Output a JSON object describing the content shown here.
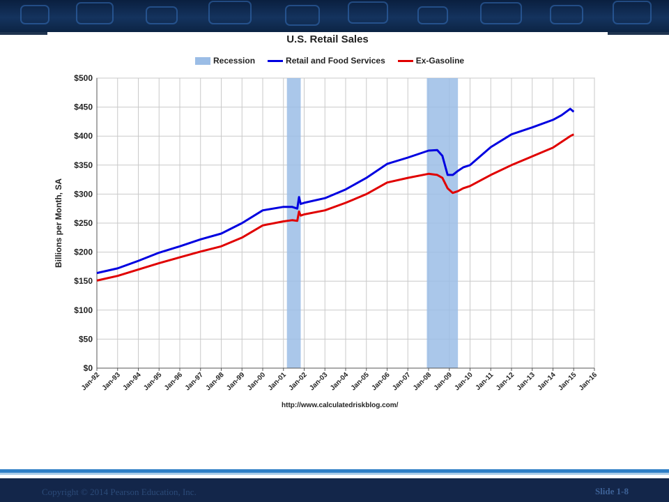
{
  "slide": {
    "copyright": "Copyright © 2014 Pearson Education, Inc.",
    "slide_number": "Slide 1-8",
    "colors": {
      "banner": "#0a1f3f",
      "footer": "#13264a",
      "accent_blue": "#2f7fc6"
    }
  },
  "chart_data": {
    "type": "line",
    "title": "U.S. Retail Sales",
    "ylabel": "Billions per Month, SA",
    "xlabel": "",
    "source": "http://www.calculatedriskblog.com/",
    "ylim": [
      0,
      500
    ],
    "y_ticks": [
      "$0",
      "$50",
      "$100",
      "$150",
      "$200",
      "$250",
      "$300",
      "$350",
      "$400",
      "$450",
      "$500"
    ],
    "x_ticks": [
      "Jan-92",
      "Jan-93",
      "Jan-94",
      "Jan-95",
      "Jan-96",
      "Jan-97",
      "Jan-98",
      "Jan-99",
      "Jan-00",
      "Jan-01",
      "Jan-02",
      "Jan-03",
      "Jan-04",
      "Jan-05",
      "Jan-06",
      "Jan-07",
      "Jan-08",
      "Jan-09",
      "Jan-10",
      "Jan-11",
      "Jan-12",
      "Jan-13",
      "Jan-14",
      "Jan-15",
      "Jan-16"
    ],
    "grid": true,
    "legend_position": "top",
    "recession_label": "Recession",
    "recession_color": "#9bbde6",
    "recessions": [
      {
        "start": "2001-03",
        "end": "2001-11"
      },
      {
        "start": "2007-12",
        "end": "2009-06"
      }
    ],
    "series": [
      {
        "name": "Retail and Food Services",
        "color": "#0000e0",
        "x": [
          "1992-01",
          "1993-01",
          "1994-01",
          "1995-01",
          "1996-01",
          "1997-01",
          "1998-01",
          "1999-01",
          "2000-01",
          "2001-01",
          "2001-06",
          "2001-09",
          "2001-10",
          "2001-11",
          "2002-01",
          "2003-01",
          "2004-01",
          "2005-01",
          "2006-01",
          "2007-01",
          "2008-01",
          "2008-06",
          "2008-09",
          "2008-12",
          "2009-03",
          "2009-06",
          "2009-09",
          "2010-01",
          "2011-01",
          "2012-01",
          "2013-01",
          "2014-01",
          "2014-06",
          "2014-11",
          "2015-01"
        ],
        "values": [
          164,
          172,
          185,
          199,
          210,
          222,
          232,
          250,
          272,
          278,
          278,
          275,
          295,
          283,
          285,
          293,
          308,
          328,
          352,
          363,
          375,
          376,
          366,
          333,
          333,
          340,
          346,
          350,
          381,
          403,
          415,
          428,
          436,
          447,
          442
        ]
      },
      {
        "name": "Ex-Gasoline",
        "color": "#e00000",
        "x": [
          "1992-01",
          "1993-01",
          "1994-01",
          "1995-01",
          "1996-01",
          "1997-01",
          "1998-01",
          "1999-01",
          "2000-01",
          "2001-01",
          "2001-06",
          "2001-09",
          "2001-10",
          "2001-11",
          "2002-01",
          "2003-01",
          "2004-01",
          "2005-01",
          "2006-01",
          "2007-01",
          "2008-01",
          "2008-06",
          "2008-09",
          "2008-12",
          "2009-03",
          "2009-06",
          "2009-09",
          "2010-01",
          "2011-01",
          "2012-01",
          "2013-01",
          "2014-01",
          "2014-06",
          "2014-11",
          "2015-01"
        ],
        "values": [
          151,
          159,
          170,
          181,
          191,
          201,
          210,
          225,
          246,
          253,
          255,
          254,
          270,
          263,
          265,
          272,
          285,
          300,
          320,
          328,
          335,
          333,
          328,
          310,
          302,
          305,
          310,
          314,
          333,
          350,
          365,
          380,
          390,
          400,
          403
        ]
      }
    ]
  }
}
